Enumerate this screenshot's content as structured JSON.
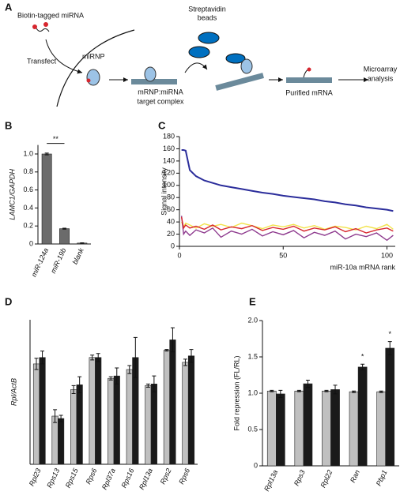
{
  "diagram": {
    "label": "A",
    "biotin": "Biotin-tagged miRNA",
    "transfect": "Transfect",
    "mirnp": "miRNP",
    "beads": [
      "Streptavidin",
      "beads"
    ],
    "complex": [
      "mRNP:miRNA",
      "target complex"
    ],
    "purified": "Purified mRNA",
    "microarray": [
      "Microarray",
      "analysis"
    ]
  },
  "chart_data": [
    {
      "type": "bar",
      "label": "B",
      "ylabel": "LAMC1/GAPDH",
      "categories": [
        "miR-124a",
        "miR-19b",
        "blank"
      ],
      "values": [
        1.0,
        0.17,
        0.01
      ],
      "errors": [
        0.01,
        0.005,
        0.003
      ],
      "color": "#6b6b6b",
      "ylim": [
        0,
        1.1
      ],
      "yticks": [
        0,
        0.2,
        0.4,
        0.6,
        0.8,
        {
          "value": 1,
          "label": "1.0"
        }
      ],
      "annotations": [
        {
          "text": "**",
          "from": "miR-124a",
          "to": "miR-19b"
        }
      ]
    },
    {
      "type": "line",
      "label": "C",
      "xlabel": "miR-10a mRNA rank",
      "ylabel": "Signal intensity",
      "x": [
        1,
        2,
        3,
        5,
        8,
        12,
        16,
        20,
        25,
        30,
        35,
        40,
        45,
        50,
        55,
        60,
        65,
        70,
        75,
        80,
        85,
        90,
        95,
        100,
        103
      ],
      "series": [
        {
          "color": "#2b2d9b",
          "values": [
            158,
            158,
            157,
            125,
            115,
            108,
            104,
            100,
            97,
            94,
            91,
            88,
            86,
            83,
            81,
            79,
            77,
            74,
            72,
            69,
            67,
            64,
            62,
            60,
            58
          ]
        },
        {
          "color": "#f2e34b",
          "values": [
            40,
            32,
            38,
            35,
            30,
            37,
            33,
            36,
            31,
            38,
            34,
            29,
            35,
            32,
            36,
            30,
            34,
            28,
            33,
            31,
            27,
            33,
            29,
            36,
            28
          ]
        },
        {
          "color": "#8e3a8e",
          "values": [
            50,
            20,
            25,
            18,
            27,
            22,
            30,
            15,
            25,
            20,
            28,
            17,
            24,
            19,
            26,
            14,
            23,
            18,
            25,
            12,
            20,
            16,
            22,
            10,
            18
          ]
        },
        {
          "color": "#d7262e",
          "values": [
            48,
            30,
            35,
            30,
            33,
            28,
            35,
            27,
            32,
            29,
            34,
            26,
            31,
            28,
            33,
            25,
            30,
            27,
            32,
            24,
            29,
            22,
            27,
            30,
            25
          ]
        }
      ],
      "xlim": [
        0,
        104
      ],
      "xticks": [
        0,
        50,
        100
      ],
      "ylim": [
        0,
        180
      ],
      "yticks": [
        0,
        20,
        40,
        60,
        80,
        100,
        120,
        140,
        160,
        180
      ]
    },
    {
      "type": "bar",
      "label": "D",
      "ylabel": "Rpl/ActB",
      "categories": [
        "Rpl23",
        "Rps13",
        "Rps15",
        "Rps6",
        "Rpl37a",
        "Rps16",
        "Rpl13a",
        "Rps2",
        "Rps6"
      ],
      "series": [
        {
          "color": "#c0c0c0",
          "values": [
            1.25,
            0.6,
            0.93,
            1.33,
            1.07,
            1.18,
            0.98,
            1.42,
            1.27
          ],
          "errors": [
            0.07,
            0.08,
            0.05,
            0.03,
            0.02,
            0.05,
            0.02,
            0.01,
            0.04
          ]
        },
        {
          "color": "#1a1a1a",
          "values": [
            1.33,
            0.57,
            0.99,
            1.33,
            1.1,
            1.33,
            1.0,
            1.55,
            1.35
          ],
          "errors": [
            0.08,
            0.04,
            0.1,
            0.05,
            0.1,
            0.25,
            0.1,
            0.15,
            0.08
          ]
        }
      ],
      "ylim": [
        0,
        1.8
      ]
    },
    {
      "type": "bar",
      "label": "E",
      "ylabel": "Fold repression (FL/RL)",
      "categories": [
        "Rpl13a",
        "Rps3",
        "Rpl22",
        "Ran",
        "Pbp1"
      ],
      "series": [
        {
          "color": "#c0c0c0",
          "values": [
            1.03,
            1.03,
            1.03,
            1.02,
            1.02
          ],
          "errors": [
            0.01,
            0.01,
            0.01,
            0.01,
            0.01
          ]
        },
        {
          "color": "#1a1a1a",
          "values": [
            0.99,
            1.13,
            1.05,
            1.36,
            1.62
          ],
          "errors": [
            0.05,
            0.05,
            0.06,
            0.04,
            0.09
          ]
        }
      ],
      "ylim": [
        0,
        2
      ],
      "yticks": [
        0,
        0.5,
        {
          "value": 1,
          "label": "1.0"
        },
        1.5,
        {
          "value": 2,
          "label": "2.0"
        }
      ],
      "annotations": [
        {
          "text": "*",
          "category": "Ran"
        },
        {
          "text": "*",
          "category": "Pbp1"
        }
      ]
    }
  ]
}
